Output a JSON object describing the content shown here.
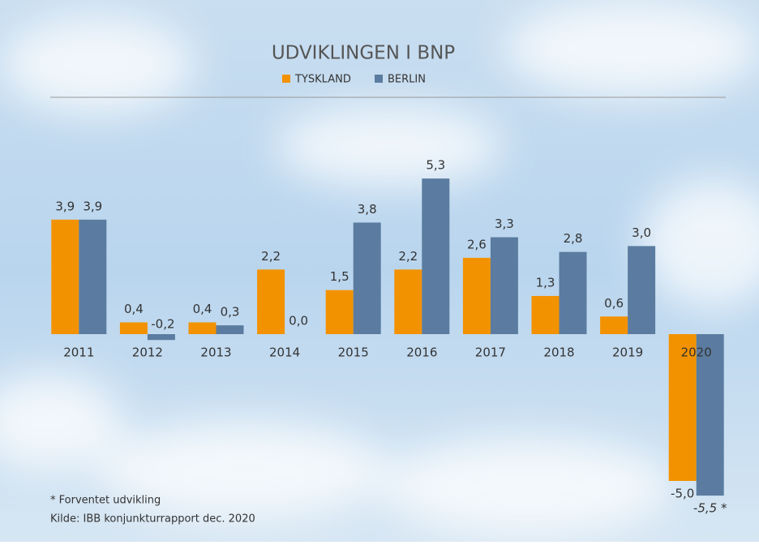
{
  "chart_data": {
    "type": "bar",
    "title": "UDVIKLINGEN I BNP",
    "categories": [
      "2011",
      "2012",
      "2013",
      "2014",
      "2015",
      "2016",
      "2017",
      "2018",
      "2019",
      "2020"
    ],
    "series": [
      {
        "name": "TYSKLAND",
        "color": "#f39200",
        "values": [
          3.9,
          0.4,
          0.4,
          2.2,
          1.5,
          2.2,
          2.6,
          1.3,
          0.6,
          -5.0
        ],
        "value_labels": [
          "3,9",
          "0,4",
          "0,4",
          "2,2",
          "1,5",
          "2,2",
          "2,6",
          "1,3",
          "0,6",
          "-5,0"
        ]
      },
      {
        "name": "BERLIN",
        "color": "#5b7ca0",
        "values": [
          3.9,
          -0.2,
          0.3,
          0.0,
          3.8,
          5.3,
          3.3,
          2.8,
          3.0,
          -5.5
        ],
        "value_labels": [
          "3,9",
          "-0,2",
          "0,3",
          "0,0",
          "3,8",
          "5,3",
          "3,3",
          "2,8",
          "3,0",
          "-5,5 *"
        ]
      }
    ],
    "legend": "top",
    "footnotes": [
      "* Forventet udvikling",
      "Kilde: IBB konjunkturrapport dec. 2020"
    ]
  }
}
